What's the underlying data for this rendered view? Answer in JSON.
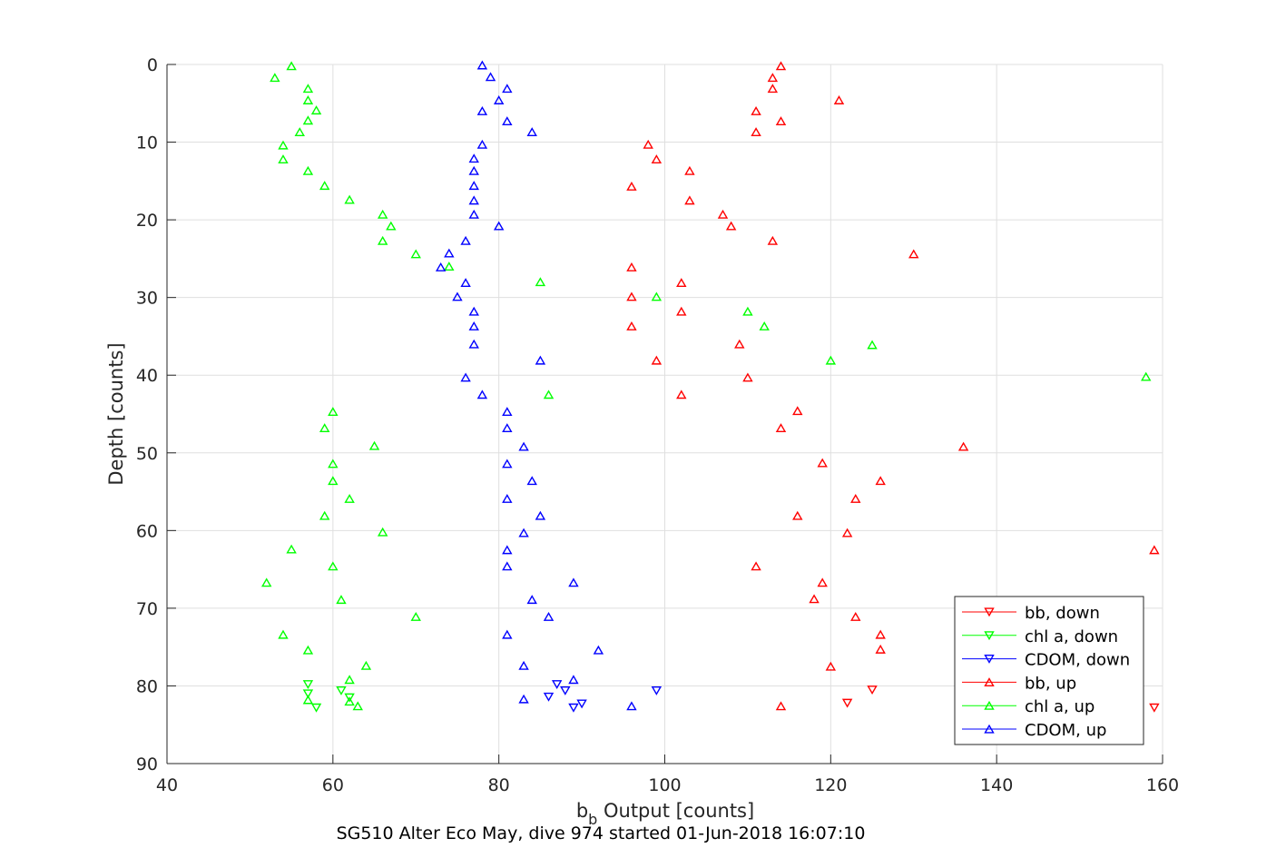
{
  "chart_data": {
    "type": "scatter",
    "title": "SG510 Alter Eco May, dive 974 started 01-Jun-2018 16:07:10",
    "xlabel_main": "b",
    "xlabel_sub": "b",
    "xlabel_rest": " Output [counts]",
    "ylabel": "Depth [counts]",
    "xlim": [
      40,
      160
    ],
    "ylim": [
      0,
      90
    ],
    "y_reversed": true,
    "grid": true,
    "legend_position": "bottom-right",
    "xticks": [
      40,
      60,
      80,
      100,
      120,
      140,
      160
    ],
    "yticks": [
      0,
      10,
      20,
      30,
      40,
      50,
      60,
      70,
      80,
      90
    ],
    "series": [
      {
        "name": "bb, down",
        "color": "#ff0000",
        "marker": "triangle-down",
        "points": [
          [
            125,
            80.5
          ],
          [
            122,
            82.2
          ],
          [
            159,
            82.8
          ]
        ]
      },
      {
        "name": "chl a, down",
        "color": "#00ff00",
        "marker": "triangle-down",
        "points": [
          [
            57,
            79.8
          ],
          [
            61,
            80.6
          ],
          [
            62,
            81.5
          ],
          [
            57,
            81.0
          ],
          [
            58,
            82.8
          ]
        ]
      },
      {
        "name": "CDOM, down",
        "color": "#0000ff",
        "marker": "triangle-down",
        "points": [
          [
            87,
            79.8
          ],
          [
            99,
            80.6
          ],
          [
            88,
            80.6
          ],
          [
            86,
            81.4
          ],
          [
            90,
            82.3
          ],
          [
            89,
            82.8
          ]
        ]
      },
      {
        "name": "bb, up",
        "color": "#ff0000",
        "marker": "triangle-up",
        "points": [
          [
            114,
            0.2
          ],
          [
            113,
            1.7
          ],
          [
            113,
            3.1
          ],
          [
            121,
            4.6
          ],
          [
            111,
            6.0
          ],
          [
            114,
            7.3
          ],
          [
            111,
            8.7
          ],
          [
            98,
            10.3
          ],
          [
            99,
            12.2
          ],
          [
            103,
            13.7
          ],
          [
            96,
            15.7
          ],
          [
            103,
            17.5
          ],
          [
            107,
            19.3
          ],
          [
            108,
            20.8
          ],
          [
            113,
            22.7
          ],
          [
            130,
            24.4
          ],
          [
            96,
            26.1
          ],
          [
            102,
            28.1
          ],
          [
            96,
            29.9
          ],
          [
            102,
            31.8
          ],
          [
            96,
            33.7
          ],
          [
            109,
            36.0
          ],
          [
            99,
            38.1
          ],
          [
            110,
            40.3
          ],
          [
            102,
            42.5
          ],
          [
            116,
            44.6
          ],
          [
            114,
            46.8
          ],
          [
            136,
            49.2
          ],
          [
            119,
            51.3
          ],
          [
            126,
            53.6
          ],
          [
            123,
            55.9
          ],
          [
            116,
            58.1
          ],
          [
            122,
            60.3
          ],
          [
            159,
            62.5
          ],
          [
            111,
            64.6
          ],
          [
            119,
            66.7
          ],
          [
            118,
            68.8
          ],
          [
            123,
            71.1
          ],
          [
            126,
            73.4
          ],
          [
            126,
            75.3
          ],
          [
            120,
            77.5
          ],
          [
            114,
            82.6
          ]
        ]
      },
      {
        "name": "chl a, up",
        "color": "#00ff00",
        "marker": "triangle-up",
        "points": [
          [
            55,
            0.2
          ],
          [
            53,
            1.7
          ],
          [
            57,
            3.1
          ],
          [
            57,
            4.6
          ],
          [
            58,
            5.9
          ],
          [
            57,
            7.2
          ],
          [
            56,
            8.7
          ],
          [
            54,
            10.4
          ],
          [
            54,
            12.2
          ],
          [
            57,
            13.7
          ],
          [
            59,
            15.6
          ],
          [
            62,
            17.4
          ],
          [
            66,
            19.3
          ],
          [
            67,
            20.8
          ],
          [
            66,
            22.7
          ],
          [
            70,
            24.4
          ],
          [
            74,
            26.0
          ],
          [
            85,
            28.0
          ],
          [
            99,
            29.9
          ],
          [
            110,
            31.8
          ],
          [
            112,
            33.7
          ],
          [
            125,
            36.1
          ],
          [
            120,
            38.1
          ],
          [
            158,
            40.2
          ],
          [
            86,
            42.5
          ],
          [
            60,
            44.7
          ],
          [
            59,
            46.8
          ],
          [
            65,
            49.1
          ],
          [
            60,
            51.4
          ],
          [
            60,
            53.6
          ],
          [
            62,
            55.9
          ],
          [
            59,
            58.1
          ],
          [
            66,
            60.2
          ],
          [
            55,
            62.4
          ],
          [
            60,
            64.6
          ],
          [
            52,
            66.7
          ],
          [
            61,
            68.9
          ],
          [
            70,
            71.1
          ],
          [
            54,
            73.4
          ],
          [
            57,
            75.4
          ],
          [
            64,
            77.4
          ],
          [
            62,
            79.2
          ],
          [
            57,
            81.8
          ],
          [
            62,
            82.0
          ],
          [
            63,
            82.6
          ]
        ]
      },
      {
        "name": "CDOM, up",
        "color": "#0000ff",
        "marker": "triangle-up",
        "points": [
          [
            78,
            0.1
          ],
          [
            79,
            1.6
          ],
          [
            81,
            3.1
          ],
          [
            80,
            4.6
          ],
          [
            78,
            6.0
          ],
          [
            81,
            7.3
          ],
          [
            84,
            8.7
          ],
          [
            78,
            10.3
          ],
          [
            77,
            12.1
          ],
          [
            77,
            13.7
          ],
          [
            77,
            15.6
          ],
          [
            77,
            17.5
          ],
          [
            77,
            19.3
          ],
          [
            80,
            20.8
          ],
          [
            76,
            22.7
          ],
          [
            74,
            24.3
          ],
          [
            73,
            26.1
          ],
          [
            76,
            28.1
          ],
          [
            75,
            29.9
          ],
          [
            77,
            31.8
          ],
          [
            77,
            33.7
          ],
          [
            77,
            36.0
          ],
          [
            85,
            38.1
          ],
          [
            76,
            40.3
          ],
          [
            78,
            42.5
          ],
          [
            81,
            44.7
          ],
          [
            81,
            46.8
          ],
          [
            83,
            49.2
          ],
          [
            81,
            51.4
          ],
          [
            84,
            53.6
          ],
          [
            81,
            55.9
          ],
          [
            85,
            58.1
          ],
          [
            83,
            60.3
          ],
          [
            81,
            62.5
          ],
          [
            81,
            64.6
          ],
          [
            89,
            66.7
          ],
          [
            84,
            68.9
          ],
          [
            86,
            71.1
          ],
          [
            81,
            73.4
          ],
          [
            92,
            75.4
          ],
          [
            83,
            77.4
          ],
          [
            89,
            79.2
          ],
          [
            83,
            81.7
          ],
          [
            96,
            82.6
          ]
        ]
      }
    ]
  }
}
